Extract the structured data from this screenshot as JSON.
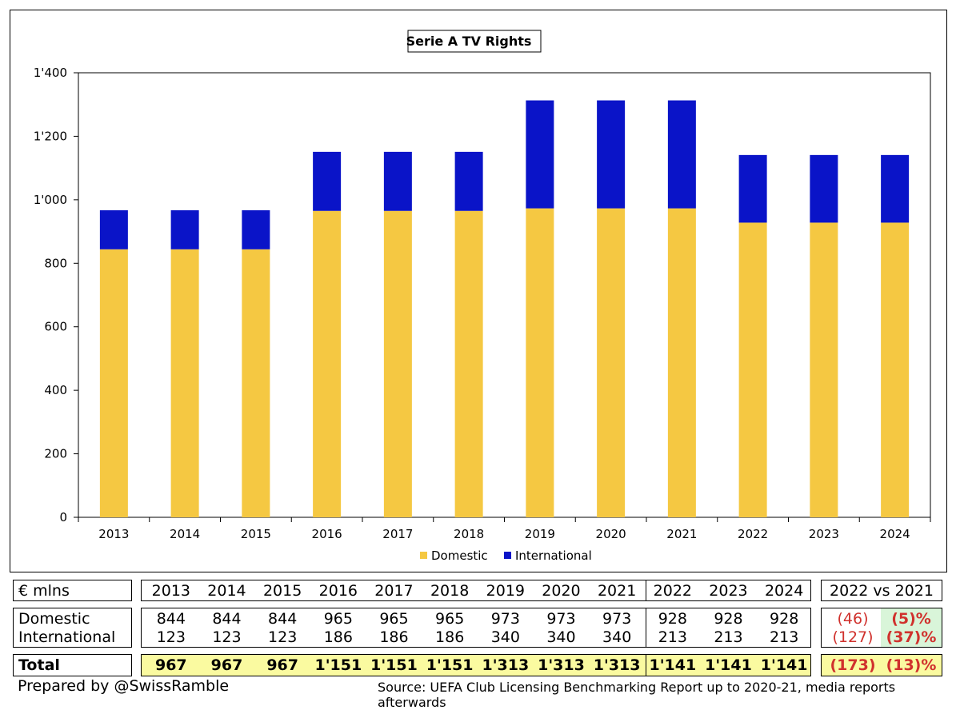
{
  "chart_data": {
    "type": "bar",
    "stacked": true,
    "title": "Serie A TV Rights",
    "categories": [
      "2013",
      "2014",
      "2015",
      "2016",
      "2017",
      "2018",
      "2019",
      "2020",
      "2021",
      "2022",
      "2023",
      "2024"
    ],
    "series": [
      {
        "name": "Domestic",
        "color": "#f5c842",
        "values": [
          844,
          844,
          844,
          965,
          965,
          965,
          973,
          973,
          973,
          928,
          928,
          928
        ]
      },
      {
        "name": "International",
        "color": "#0a14c8",
        "values": [
          123,
          123,
          123,
          186,
          186,
          186,
          340,
          340,
          340,
          213,
          213,
          213
        ]
      }
    ],
    "ylim": [
      0,
      1400
    ],
    "yticks": [
      0,
      200,
      400,
      600,
      800,
      1000,
      1200,
      1400
    ],
    "ytick_labels": [
      "0",
      "200",
      "400",
      "600",
      "800",
      "1'000",
      "1'200",
      "1'400"
    ],
    "legend_position": "bottom-center",
    "xlabel": "",
    "ylabel": ""
  },
  "table": {
    "unit_label": "€ mlns",
    "years": [
      "2013",
      "2014",
      "2015",
      "2016",
      "2017",
      "2018",
      "2019",
      "2020",
      "2021",
      "2022",
      "2023",
      "2024"
    ],
    "comparison_header": "2022 vs 2021",
    "rows": [
      {
        "label": "Domestic",
        "values": [
          "844",
          "844",
          "844",
          "965",
          "965",
          "965",
          "973",
          "973",
          "973",
          "928",
          "928",
          "928"
        ],
        "change": "(46)",
        "change_pct": "(5)%"
      },
      {
        "label": "International",
        "values": [
          "123",
          "123",
          "123",
          "186",
          "186",
          "186",
          "340",
          "340",
          "340",
          "213",
          "213",
          "213"
        ],
        "change": "(127)",
        "change_pct": "(37)%"
      }
    ],
    "total": {
      "label": "Total",
      "values": [
        "967",
        "967",
        "967",
        "1'151",
        "1'151",
        "1'151",
        "1'313",
        "1'313",
        "1'313",
        "1'141",
        "1'141",
        "1'141"
      ],
      "change": "(173)",
      "change_pct": "(13)%"
    }
  },
  "footer": {
    "credit": "Prepared by @SwissRamble",
    "source": "Source: UEFA Club Licensing Benchmarking Report up to 2020-21, media reports afterwards"
  },
  "colors": {
    "domestic": "#f5c842",
    "international": "#0a14c8",
    "highlight_yellow": "#fafaa0",
    "highlight_green": "#d9f5d9",
    "negative": "#d0312d"
  }
}
